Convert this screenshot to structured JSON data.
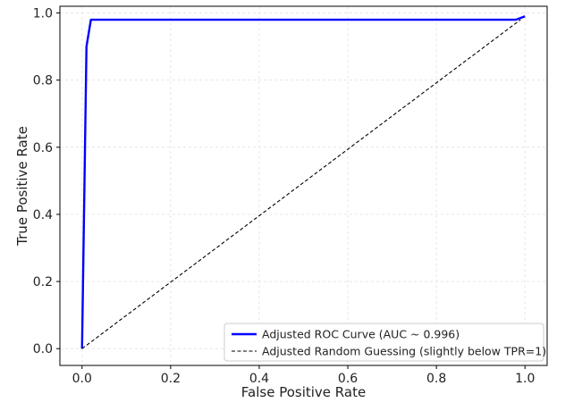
{
  "chart_data": {
    "type": "line",
    "xlabel": "False Positive Rate",
    "ylabel": "True Positive Rate",
    "xlim": [
      -0.05,
      1.05
    ],
    "ylim": [
      -0.05,
      1.02
    ],
    "xticks": [
      "0.0",
      "0.2",
      "0.4",
      "0.6",
      "0.8",
      "1.0"
    ],
    "yticks": [
      "0.0",
      "0.2",
      "0.4",
      "0.6",
      "0.8",
      "1.0"
    ],
    "grid": true,
    "legend_position": "lower-right",
    "series": [
      {
        "name": "Adjusted ROC Curve (AUC ~ 0.996)",
        "color": "#0000ff",
        "style": "solid",
        "x": [
          0.0,
          0.0,
          0.01,
          0.02,
          0.98,
          1.0
        ],
        "y": [
          0.0,
          0.0,
          0.9,
          0.98,
          0.98,
          0.99
        ]
      },
      {
        "name": "Adjusted Random Guessing (slightly below TPR=1)",
        "color": "#000000",
        "style": "dashed",
        "x": [
          0.0,
          0.99
        ],
        "y": [
          0.0,
          0.98
        ]
      }
    ]
  }
}
